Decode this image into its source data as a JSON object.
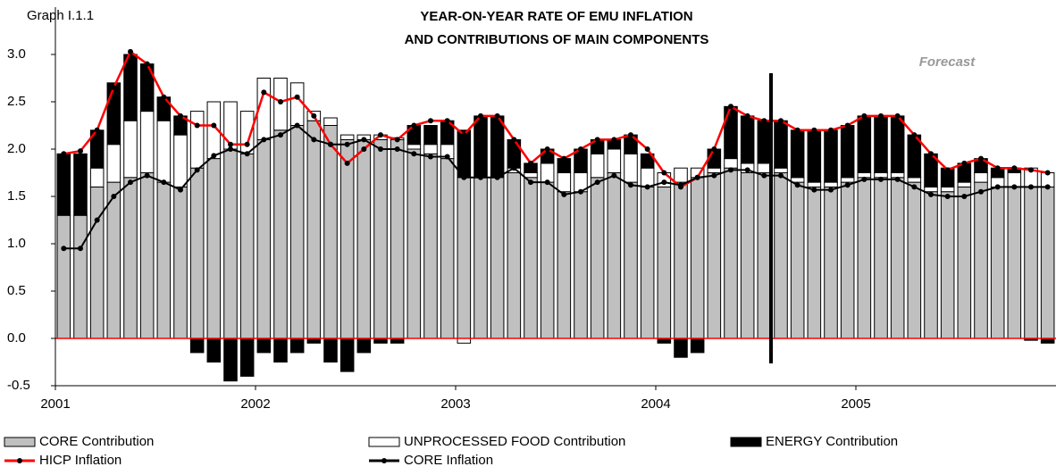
{
  "chart_data": {
    "type": "bar",
    "graph_label": "Graph I.1.1",
    "title_lines": [
      "YEAR-ON-YEAR RATE OF EMU INFLATION",
      "AND CONTRIBUTIONS OF MAIN COMPONENTS"
    ],
    "annotation": "Forecast",
    "categories": [
      "2001",
      null,
      null,
      null,
      null,
      null,
      null,
      null,
      null,
      null,
      null,
      null,
      "2002",
      null,
      null,
      null,
      null,
      null,
      null,
      null,
      null,
      null,
      null,
      null,
      "2003",
      null,
      null,
      null,
      null,
      null,
      null,
      null,
      null,
      null,
      null,
      null,
      "2004",
      null,
      null,
      null,
      null,
      null,
      null,
      null,
      null,
      null,
      null,
      null,
      "2005",
      null,
      null,
      null,
      null,
      null,
      null,
      null,
      null,
      null,
      null,
      null
    ],
    "ylim": [
      -0.5,
      3.5
    ],
    "yticks": [
      -0.5,
      {
        "value": 0,
        "label": "0.0"
      },
      0.5,
      {
        "value": 1,
        "label": "1.0"
      },
      1.5,
      {
        "value": 2,
        "label": "2.0"
      },
      2.5,
      {
        "value": 3,
        "label": "3.0"
      }
    ],
    "legend": "bottom",
    "series": [
      {
        "name": "CORE Contribution",
        "type": "bar",
        "color": "#c0c0c0",
        "values": [
          1.3,
          1.3,
          1.6,
          1.65,
          1.7,
          1.75,
          1.65,
          1.6,
          1.8,
          1.9,
          2.0,
          1.95,
          2.1,
          2.2,
          2.25,
          2.3,
          2.25,
          2.1,
          2.1,
          2.1,
          2.1,
          2.0,
          1.95,
          1.9,
          1.7,
          1.7,
          1.7,
          1.75,
          1.7,
          1.65,
          1.55,
          1.55,
          1.7,
          1.75,
          1.65,
          1.6,
          1.6,
          1.65,
          1.7,
          1.75,
          1.8,
          1.75,
          1.75,
          1.75,
          1.65,
          1.6,
          1.6,
          1.65,
          1.7,
          1.7,
          1.7,
          1.65,
          1.55,
          1.55,
          1.6,
          1.65,
          1.6,
          1.6,
          1.6,
          1.6
        ]
      },
      {
        "name": "UNPROCESSED FOOD Contribution",
        "type": "bar",
        "color": "#ffffff",
        "values": [
          0,
          0,
          0.2,
          0.4,
          0.6,
          0.65,
          0.65,
          0.55,
          0.6,
          0.6,
          0.5,
          0.45,
          0.65,
          0.55,
          0.45,
          0.1,
          0.08,
          0.05,
          0.05,
          0.05,
          0.02,
          0.05,
          0.1,
          0.15,
          -0.05,
          0,
          0,
          0.05,
          0.05,
          0.2,
          0.2,
          0.2,
          0.25,
          0.25,
          0.3,
          0.2,
          0.15,
          0.15,
          0.1,
          0.05,
          0.1,
          0.1,
          0.1,
          0.05,
          0.05,
          0.05,
          0.05,
          0.05,
          0.05,
          0.05,
          0.05,
          0.05,
          0.05,
          0.05,
          0.05,
          0.1,
          0.1,
          0.15,
          0.2,
          0.15
        ]
      },
      {
        "name": "ENERGY Contribution",
        "type": "bar",
        "color": "#000000",
        "values": [
          0.65,
          0.65,
          0.4,
          0.65,
          0.7,
          0.5,
          0.25,
          0.2,
          -0.15,
          -0.25,
          -0.45,
          -0.4,
          -0.15,
          -0.25,
          -0.15,
          -0.05,
          -0.25,
          -0.35,
          -0.15,
          -0.05,
          -0.05,
          0.2,
          0.2,
          0.25,
          0.5,
          0.65,
          0.65,
          0.3,
          0.1,
          0.15,
          0.15,
          0.25,
          0.15,
          0.1,
          0.2,
          0.15,
          -0.05,
          -0.2,
          -0.15,
          0.2,
          0.55,
          0.5,
          0.45,
          0.5,
          0.5,
          0.55,
          0.55,
          0.55,
          0.6,
          0.6,
          0.6,
          0.45,
          0.35,
          0.2,
          0.2,
          0.15,
          0.1,
          0.05,
          -0.02,
          -0.05
        ]
      },
      {
        "name": "HICP Inflation",
        "type": "line",
        "color": "#ff0000",
        "values": [
          1.95,
          1.98,
          2.2,
          2.65,
          3.03,
          2.9,
          2.55,
          2.35,
          2.25,
          2.25,
          2.05,
          2.05,
          2.6,
          2.5,
          2.55,
          2.35,
          2.05,
          1.85,
          2.0,
          2.15,
          2.1,
          2.25,
          2.3,
          2.3,
          2.15,
          2.35,
          2.35,
          2.1,
          1.85,
          2.0,
          1.9,
          2.0,
          2.1,
          2.1,
          2.15,
          2.0,
          1.75,
          1.6,
          1.7,
          2.0,
          2.45,
          2.35,
          2.3,
          2.3,
          2.2,
          2.2,
          2.2,
          2.25,
          2.35,
          2.35,
          2.35,
          2.15,
          1.95,
          1.78,
          1.85,
          1.9,
          1.8,
          1.8,
          1.78,
          1.75
        ]
      },
      {
        "name": "CORE Inflation",
        "type": "line",
        "color": "#000000",
        "values": [
          0.95,
          0.95,
          1.25,
          1.5,
          1.65,
          1.72,
          1.65,
          1.57,
          1.78,
          1.93,
          2.0,
          1.95,
          2.1,
          2.15,
          2.25,
          2.1,
          2.05,
          2.05,
          2.1,
          2.0,
          2.0,
          1.95,
          1.92,
          1.92,
          1.7,
          1.7,
          1.7,
          1.8,
          1.65,
          1.65,
          1.52,
          1.55,
          1.65,
          1.72,
          1.62,
          1.6,
          1.65,
          1.62,
          1.7,
          1.72,
          1.78,
          1.78,
          1.72,
          1.72,
          1.62,
          1.57,
          1.57,
          1.62,
          1.68,
          1.68,
          1.68,
          1.6,
          1.52,
          1.5,
          1.5,
          1.55,
          1.6,
          1.6,
          1.6,
          1.6
        ]
      }
    ]
  }
}
